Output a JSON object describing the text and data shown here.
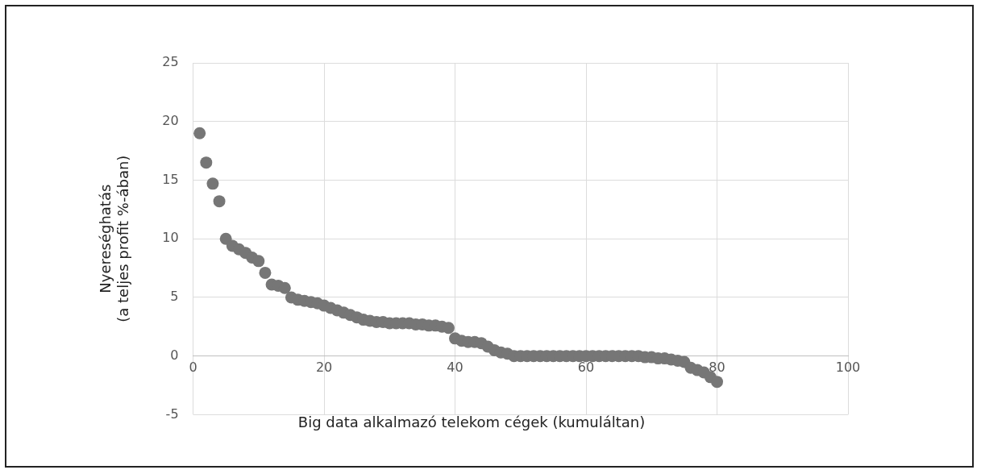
{
  "chart_data": {
    "type": "scatter",
    "xlabel": "Big data alkalmazó telekom cégek (kumuláltan)",
    "ylabel": "Nyereséghatás\n(a teljes profit %-ában)",
    "x": [
      1,
      2,
      3,
      4,
      5,
      6,
      7,
      8,
      9,
      10,
      11,
      12,
      13,
      14,
      15,
      16,
      17,
      18,
      19,
      20,
      21,
      22,
      23,
      24,
      25,
      26,
      27,
      28,
      29,
      30,
      31,
      32,
      33,
      34,
      35,
      36,
      37,
      38,
      39,
      40,
      41,
      42,
      43,
      44,
      45,
      46,
      47,
      48,
      49,
      50,
      51,
      52,
      53,
      54,
      55,
      56,
      57,
      58,
      59,
      60,
      61,
      62,
      63,
      64,
      65,
      66,
      67,
      68,
      69,
      70,
      71,
      72,
      73,
      74,
      75,
      76,
      77,
      78,
      79,
      80
    ],
    "series": [
      {
        "color": "#767676",
        "values": [
          19,
          16.5,
          14.7,
          13.2,
          10,
          9.4,
          9.1,
          8.8,
          8.4,
          8.1,
          7.1,
          6.1,
          6,
          5.8,
          5,
          4.8,
          4.7,
          4.6,
          4.5,
          4.3,
          4.1,
          3.9,
          3.7,
          3.5,
          3.3,
          3.1,
          3,
          2.9,
          2.9,
          2.8,
          2.8,
          2.8,
          2.8,
          2.7,
          2.7,
          2.6,
          2.6,
          2.5,
          2.4,
          1.5,
          1.3,
          1.2,
          1.2,
          1.1,
          0.8,
          0.5,
          0.3,
          0.2,
          0,
          0,
          0,
          0,
          0,
          0,
          0,
          0,
          0,
          0,
          0,
          0,
          0,
          0,
          0,
          0,
          0,
          0,
          0,
          0,
          -0.1,
          -0.1,
          -0.2,
          -0.2,
          -0.3,
          -0.4,
          -0.5,
          -1,
          -1.2,
          -1.4,
          -1.8,
          -2.2
        ]
      }
    ],
    "xlim": [
      0,
      100
    ],
    "xticks": [
      0,
      20,
      40,
      60,
      80,
      100
    ],
    "ylim": [
      -5,
      25
    ],
    "yticks": [
      -5,
      0,
      5,
      10,
      15,
      20,
      25
    ],
    "grid": true,
    "marker": "circle",
    "legend": false
  }
}
